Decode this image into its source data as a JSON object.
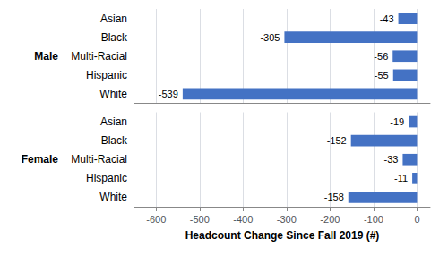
{
  "chart_data": {
    "type": "bar",
    "orientation": "horizontal",
    "xlabel": "Headcount Change Since Fall 2019 (#)",
    "categories": [
      "Asian",
      "Black",
      "Multi-Racial",
      "Hispanic",
      "White"
    ],
    "series": [
      {
        "name": "Male",
        "color": "#4472c4",
        "values": [
          -43,
          -305,
          -56,
          -55,
          -539
        ]
      },
      {
        "name": "Female",
        "color": "#4472c4",
        "values": [
          -19,
          -152,
          -33,
          -11,
          -158
        ]
      }
    ],
    "xlim": [
      -650,
      30
    ],
    "xticks": [
      -600,
      -500,
      -400,
      -300,
      -200,
      -100,
      0
    ],
    "grid": true,
    "data_labels": true
  }
}
